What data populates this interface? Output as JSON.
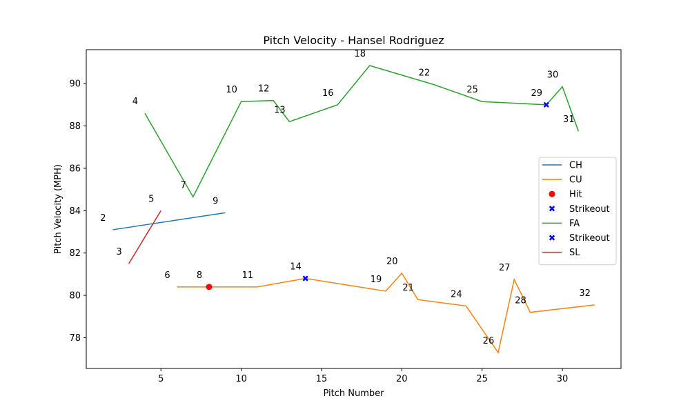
{
  "chart_data": {
    "type": "line",
    "title": "Pitch Velocity - Hansel Rodriguez",
    "xlabel": "Pitch Number",
    "ylabel": "Pitch Velocity (MPH)",
    "xlim": [
      0.35,
      33.65
    ],
    "ylim": [
      76.55,
      91.6
    ],
    "xticks": [
      5,
      10,
      15,
      20,
      25,
      30
    ],
    "yticks": [
      78,
      80,
      82,
      84,
      86,
      88,
      90
    ],
    "grid": false,
    "legend_position": "center-right",
    "series": [
      {
        "name": "CH",
        "color": "#1f77b4",
        "points": [
          [
            2,
            83.1
          ],
          [
            9,
            83.9
          ]
        ]
      },
      {
        "name": "CU",
        "color": "#ff7f0e",
        "points": [
          [
            6,
            80.4
          ],
          [
            8,
            80.4
          ],
          [
            11,
            80.4
          ],
          [
            14,
            80.8
          ],
          [
            19,
            80.2
          ],
          [
            20,
            81.05
          ],
          [
            21,
            79.8
          ],
          [
            24,
            79.5
          ],
          [
            26,
            77.3
          ],
          [
            27,
            80.75
          ],
          [
            28,
            79.2
          ],
          [
            32,
            79.55
          ]
        ],
        "outcome_markers": [
          {
            "label": "Hit",
            "color": "#ff0000",
            "shape": "circle",
            "x": 8,
            "y": 80.4
          },
          {
            "label": "Strikeout",
            "color": "#0000ff",
            "shape": "x",
            "x": 14,
            "y": 80.8
          }
        ]
      },
      {
        "name": "FA",
        "color": "#2ca02c",
        "points": [
          [
            4,
            88.6
          ],
          [
            7,
            84.65
          ],
          [
            10,
            89.15
          ],
          [
            12,
            89.2
          ],
          [
            13,
            88.2
          ],
          [
            16,
            89.0
          ],
          [
            18,
            90.85
          ],
          [
            22,
            89.95
          ],
          [
            25,
            89.15
          ],
          [
            29,
            89.0
          ],
          [
            30,
            89.85
          ],
          [
            31,
            87.75
          ]
        ],
        "outcome_markers": [
          {
            "label": "Strikeout",
            "color": "#0000ff",
            "shape": "x",
            "x": 29,
            "y": 89.0
          }
        ]
      },
      {
        "name": "SL",
        "color": "#d62728",
        "points": [
          [
            3,
            81.5
          ],
          [
            5,
            84.0
          ]
        ]
      }
    ],
    "point_labels": [
      {
        "text": "2",
        "x": 2,
        "y": 83.1
      },
      {
        "text": "9",
        "x": 9,
        "y": 83.9
      },
      {
        "text": "6",
        "x": 6,
        "y": 80.4
      },
      {
        "text": "8",
        "x": 8,
        "y": 80.4
      },
      {
        "text": "11",
        "x": 11,
        "y": 80.4
      },
      {
        "text": "14",
        "x": 14,
        "y": 80.8
      },
      {
        "text": "19",
        "x": 19,
        "y": 80.2
      },
      {
        "text": "20",
        "x": 20,
        "y": 81.05
      },
      {
        "text": "21",
        "x": 21,
        "y": 79.8
      },
      {
        "text": "24",
        "x": 24,
        "y": 79.5
      },
      {
        "text": "26",
        "x": 26,
        "y": 77.3
      },
      {
        "text": "27",
        "x": 27,
        "y": 80.75
      },
      {
        "text": "28",
        "x": 28,
        "y": 79.2
      },
      {
        "text": "32",
        "x": 32,
        "y": 79.55
      },
      {
        "text": "4",
        "x": 4,
        "y": 88.6
      },
      {
        "text": "7",
        "x": 7,
        "y": 84.65
      },
      {
        "text": "10",
        "x": 10,
        "y": 89.15
      },
      {
        "text": "12",
        "x": 12,
        "y": 89.2
      },
      {
        "text": "13",
        "x": 13,
        "y": 88.2
      },
      {
        "text": "16",
        "x": 16,
        "y": 89.0
      },
      {
        "text": "18",
        "x": 18,
        "y": 90.85
      },
      {
        "text": "22",
        "x": 22,
        "y": 89.95
      },
      {
        "text": "25",
        "x": 25,
        "y": 89.15
      },
      {
        "text": "29",
        "x": 29,
        "y": 89.0
      },
      {
        "text": "30",
        "x": 30,
        "y": 89.85
      },
      {
        "text": "31",
        "x": 31,
        "y": 87.75
      },
      {
        "text": "3",
        "x": 3,
        "y": 81.5
      },
      {
        "text": "5",
        "x": 5,
        "y": 84.0
      }
    ],
    "legend": [
      {
        "label": "CH",
        "kind": "line",
        "color": "#1f77b4"
      },
      {
        "label": "CU",
        "kind": "line",
        "color": "#ff7f0e"
      },
      {
        "label": "Hit",
        "kind": "circle",
        "color": "#ff0000"
      },
      {
        "label": "Strikeout",
        "kind": "x",
        "color": "#0000ff"
      },
      {
        "label": "FA",
        "kind": "line",
        "color": "#2ca02c"
      },
      {
        "label": "Strikeout",
        "kind": "x",
        "color": "#0000ff"
      },
      {
        "label": "SL",
        "kind": "line",
        "color": "#d62728"
      }
    ]
  }
}
